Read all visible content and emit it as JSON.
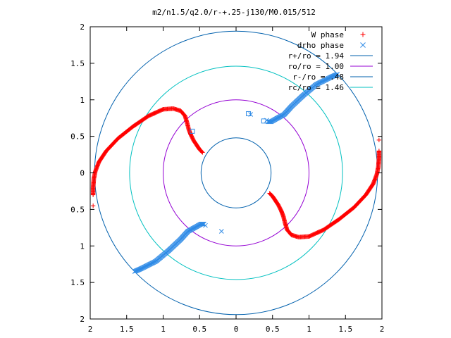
{
  "chart_data": {
    "type": "scatter",
    "title": "m2/n1.5/q2.0/r-+.25-j130/M0.015/512",
    "xlabel": "",
    "ylabel": "",
    "xlim": [
      -2,
      2
    ],
    "ylim": [
      -2,
      2
    ],
    "x_ticks": [
      "2",
      "1.5",
      "1",
      "0.5",
      "0",
      "0.5",
      "1",
      "1.5",
      "2"
    ],
    "y_ticks": [
      "2",
      "1.5",
      "1",
      "0.5",
      "0",
      "0.5",
      "1",
      "1.5",
      "2"
    ],
    "x_tick_values": [
      -2,
      -1.5,
      -1,
      -0.5,
      0,
      0.5,
      1,
      1.5,
      2
    ],
    "y_tick_values": [
      2,
      1.5,
      1,
      0.5,
      0,
      -0.5,
      -1,
      -1.5,
      -2
    ],
    "grid": false,
    "legend_position": "top-right",
    "circles": [
      {
        "name": "r+/ro = 1.94",
        "r": 1.94,
        "color": "#0060ad"
      },
      {
        "name": "ro/ro = 1.00",
        "r": 1.0,
        "color": "#9400d3"
      },
      {
        "name": "r-/ro = .48",
        "r": 0.48,
        "color": "#0060ad"
      },
      {
        "name": "rc/ro = 1.46",
        "r": 1.46,
        "color": "#00c0c0"
      }
    ],
    "series": [
      {
        "name": "W phase",
        "marker": "+",
        "color": "#ff0000",
        "arm": [
          [
            -0.46,
            0.28
          ],
          [
            -0.5,
            0.32
          ],
          [
            -0.54,
            0.38
          ],
          [
            -0.58,
            0.44
          ],
          [
            -0.62,
            0.52
          ],
          [
            -0.65,
            0.6
          ],
          [
            -0.67,
            0.68
          ],
          [
            -0.7,
            0.78
          ],
          [
            -0.76,
            0.85
          ],
          [
            -0.86,
            0.88
          ],
          [
            -1.0,
            0.87
          ],
          [
            -1.2,
            0.78
          ],
          [
            -1.42,
            0.63
          ],
          [
            -1.62,
            0.47
          ],
          [
            -1.78,
            0.3
          ],
          [
            -1.88,
            0.15
          ],
          [
            -1.93,
            0.02
          ],
          [
            -1.95,
            -0.08
          ],
          [
            -1.96,
            -0.2
          ],
          [
            -1.96,
            -0.3
          ]
        ],
        "outliers": [
          [
            -1.96,
            -0.45
          ]
        ]
      },
      {
        "name": "drho phase",
        "marker": "x",
        "color": "#2e8ae6",
        "arm": [
          [
            -1.39,
            -1.35
          ],
          [
            -1.3,
            -1.31
          ],
          [
            -1.1,
            -1.21
          ],
          [
            -0.92,
            -1.06
          ],
          [
            -0.76,
            -0.91
          ],
          [
            -0.66,
            -0.8
          ],
          [
            -0.55,
            -0.74
          ],
          [
            -0.48,
            -0.7
          ],
          [
            -0.44,
            -0.7
          ]
        ],
        "outliers": [
          [
            -0.42,
            -0.72
          ],
          [
            -0.2,
            -0.8
          ]
        ]
      }
    ],
    "extra_markers": [
      [
        -0.6,
        0.57
      ],
      [
        0.17,
        0.81
      ],
      [
        0.38,
        0.71
      ]
    ]
  }
}
